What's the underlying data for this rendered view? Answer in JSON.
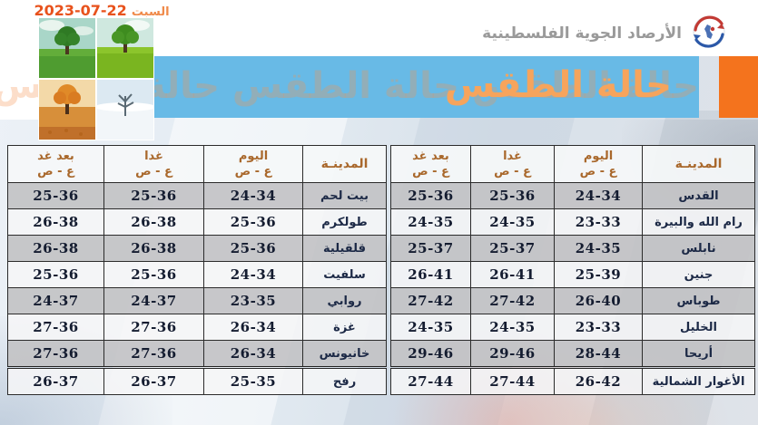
{
  "header": {
    "weekday": "السبت",
    "date": "22-07-2023",
    "org_name": "الأرصاد الجوية الفلسطينية"
  },
  "banner": {
    "title": "حالة الطقس",
    "watermark": "حالة الطقس حالة الطقس حالة الطقس حالة الطقس حالة الطقس"
  },
  "seasons": [
    "spring-tree-image",
    "summer-tree-image",
    "autumn-tree-image",
    "winter-tree-image"
  ],
  "table": {
    "city_header": "المدينـة",
    "day_headers": [
      "اليوم",
      "غدا",
      "بعد غد"
    ],
    "range_label": "ع - ص",
    "right_table": {
      "rows": [
        {
          "city": "القدس",
          "today": "24-34",
          "tomorrow": "25-36",
          "day_after": "25-36"
        },
        {
          "city": "رام الله والبيرة",
          "today": "23-33",
          "tomorrow": "24-35",
          "day_after": "24-35"
        },
        {
          "city": "نابلس",
          "today": "24-35",
          "tomorrow": "25-37",
          "day_after": "25-37"
        },
        {
          "city": "جنين",
          "today": "25-39",
          "tomorrow": "26-41",
          "day_after": "26-41"
        },
        {
          "city": "طوباس",
          "today": "26-40",
          "tomorrow": "27-42",
          "day_after": "27-42"
        },
        {
          "city": "الخليل",
          "today": "23-33",
          "tomorrow": "24-35",
          "day_after": "24-35"
        },
        {
          "city": "أريحا",
          "today": "28-44",
          "tomorrow": "29-46",
          "day_after": "29-46"
        },
        {
          "city": "الأغوار الشمالية",
          "today": "26-42",
          "tomorrow": "27-44",
          "day_after": "27-44"
        }
      ]
    },
    "left_table": {
      "rows": [
        {
          "city": "بيت لحم",
          "today": "24-34",
          "tomorrow": "25-36",
          "day_after": "25-36"
        },
        {
          "city": "طولكرم",
          "today": "25-36",
          "tomorrow": "26-38",
          "day_after": "26-38"
        },
        {
          "city": "قلقيلية",
          "today": "25-36",
          "tomorrow": "26-38",
          "day_after": "26-38"
        },
        {
          "city": "سلفيت",
          "today": "24-34",
          "tomorrow": "25-36",
          "day_after": "25-36"
        },
        {
          "city": "روابي",
          "today": "23-35",
          "tomorrow": "24-37",
          "day_after": "24-37"
        },
        {
          "city": "غزة",
          "today": "26-34",
          "tomorrow": "27-36",
          "day_after": "27-36"
        },
        {
          "city": "خانيونس",
          "today": "26-34",
          "tomorrow": "27-36",
          "day_after": "27-36"
        },
        {
          "city": "رفح",
          "today": "25-35",
          "tomorrow": "26-37",
          "day_after": "26-37"
        }
      ]
    }
  },
  "colors": {
    "banner_blue": "#68bae6",
    "accent_orange": "#f4731d",
    "title_orange": "#f6a45c",
    "header_text_brown": "#a9682c",
    "date_red": "#e8521c"
  }
}
